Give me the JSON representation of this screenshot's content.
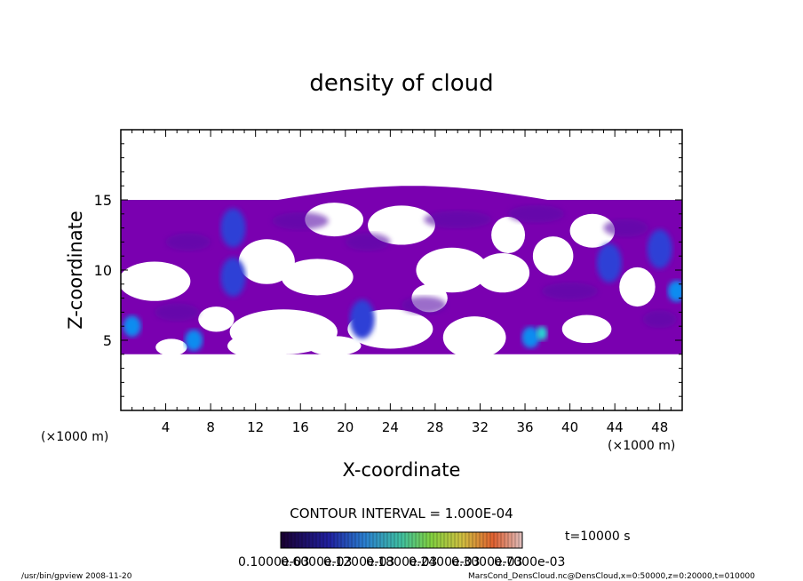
{
  "chart_data": {
    "type": "heatmap",
    "title": "density of cloud",
    "xlabel": "X-coordinate",
    "ylabel": "Z-coordinate",
    "x_unit_left": "(×1000 m)",
    "x_unit_right": "(×1000 m)",
    "xlim": [
      0,
      50
    ],
    "ylim": [
      0,
      20
    ],
    "x_ticks": [
      4,
      8,
      12,
      16,
      20,
      24,
      28,
      32,
      36,
      40,
      44,
      48
    ],
    "y_ticks": [
      5,
      10,
      15
    ],
    "contour_interval": "CONTOUR INTERVAL = 1.000E-04",
    "time_label": "t=10000 s",
    "colorbar_labels": [
      "0.1000e-03",
      "0.6000e-03",
      "0.1200e-03",
      "0.1800e-03",
      "0.2400e-03",
      "0.3000e-03",
      "0.7000e-03"
    ],
    "colors": {
      "base": "#7a00b0",
      "deep": "#5a0fa8",
      "mid": "#2f3fd6",
      "high": "#0a8cf0",
      "peak": "#25d4d4"
    },
    "cloud_layer": {
      "z_bottom": 4.0,
      "z_top": 15.0,
      "top_max": 16.0
    },
    "hot_spots": [
      {
        "x": 10,
        "z": 13,
        "level": "mid"
      },
      {
        "x": 10,
        "z": 9.5,
        "level": "mid"
      },
      {
        "x": 1,
        "z": 6,
        "level": "high"
      },
      {
        "x": 6.5,
        "z": 5,
        "level": "high"
      },
      {
        "x": 21.5,
        "z": 6.5,
        "level": "mid"
      },
      {
        "x": 36.5,
        "z": 5.2,
        "level": "high"
      },
      {
        "x": 37.5,
        "z": 5.5,
        "level": "peak"
      },
      {
        "x": 43.5,
        "z": 10.5,
        "level": "mid"
      },
      {
        "x": 48,
        "z": 11.5,
        "level": "mid"
      },
      {
        "x": 49.5,
        "z": 8.5,
        "level": "high"
      }
    ],
    "grid": false
  },
  "footer": {
    "left": "/usr/bin/gpview   2008-11-20",
    "right": "MarsCond_DensCloud.nc@DensCloud,x=0:50000,z=0:20000,t=010000"
  }
}
